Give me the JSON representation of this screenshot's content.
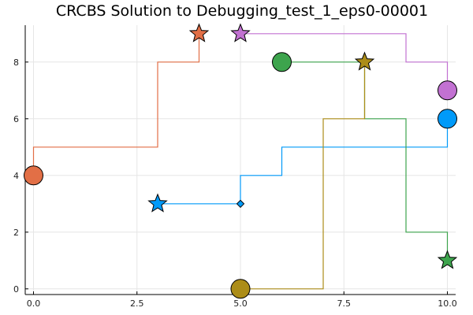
{
  "chart_data": {
    "type": "line",
    "title": "CRCBS Solution to Debugging_test_1_eps0-00001",
    "xlabel": "",
    "ylabel": "",
    "xlim": [
      -0.2,
      10.2
    ],
    "ylim": [
      -0.2,
      9.3
    ],
    "xticks": [
      0,
      2.5,
      5,
      7.5,
      10
    ],
    "xtick_labels": [
      "0.0",
      "2.5",
      "5.0",
      "7.5",
      "10.0"
    ],
    "yticks": [
      0,
      2,
      4,
      6,
      8
    ],
    "ytick_labels": [
      "0",
      "2",
      "4",
      "6",
      "8"
    ],
    "grid": true,
    "legend": "none",
    "series": [
      {
        "color": "#e26f46",
        "start": [
          0,
          4
        ],
        "goal": [
          4,
          9
        ],
        "path": [
          [
            0,
            4
          ],
          [
            0,
            5
          ],
          [
            3,
            5
          ],
          [
            3,
            8
          ],
          [
            4,
            8
          ],
          [
            4,
            9
          ]
        ]
      },
      {
        "color": "#009af9",
        "start": [
          10,
          6
        ],
        "goal": [
          3,
          3
        ],
        "path": [
          [
            10,
            6
          ],
          [
            10,
            5
          ],
          [
            6,
            5
          ],
          [
            6,
            4
          ],
          [
            5,
            4
          ],
          [
            5,
            3
          ],
          [
            3,
            3
          ]
        ],
        "waypoints": [
          [
            5,
            3
          ]
        ]
      },
      {
        "color": "#3da44d",
        "start": [
          6,
          8
        ],
        "goal": [
          10,
          1
        ],
        "path": [
          [
            6,
            8
          ],
          [
            8,
            8
          ],
          [
            8,
            6
          ],
          [
            9,
            6
          ],
          [
            9,
            2
          ],
          [
            10,
            2
          ],
          [
            10,
            1
          ]
        ]
      },
      {
        "color": "#c271d2",
        "start": [
          10,
          7
        ],
        "goal": [
          5,
          9
        ],
        "path": [
          [
            10,
            7
          ],
          [
            10,
            8
          ],
          [
            9,
            8
          ],
          [
            9,
            9
          ],
          [
            5,
            9
          ]
        ]
      },
      {
        "color": "#ac8d18",
        "start": [
          5,
          0
        ],
        "goal": [
          8,
          8
        ],
        "path": [
          [
            5,
            0
          ],
          [
            7,
            0
          ],
          [
            7,
            6
          ],
          [
            8,
            6
          ],
          [
            8,
            8
          ]
        ]
      }
    ]
  }
}
